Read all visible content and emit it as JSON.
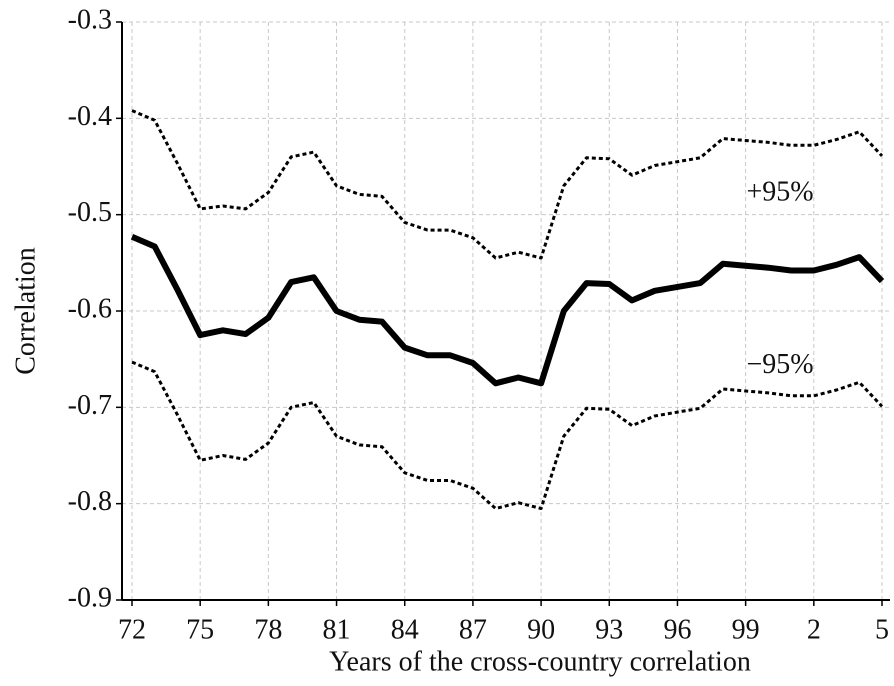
{
  "chart_data": {
    "type": "line",
    "x_label": "Years of the cross-country correlation",
    "y_label": "Correlation",
    "categories": [
      "72",
      null,
      null,
      "75",
      null,
      null,
      "78",
      null,
      null,
      "81",
      null,
      null,
      "84",
      null,
      null,
      "87",
      null,
      null,
      "90",
      null,
      null,
      "93",
      null,
      null,
      "96",
      null,
      null,
      "99",
      null,
      null,
      "2",
      null,
      null,
      "5"
    ],
    "series": [
      {
        "color": "#000000",
        "style": "solid",
        "values": [
          -0.523,
          -0.533,
          -0.578,
          -0.625,
          -0.62,
          -0.624,
          -0.607,
          -0.57,
          -0.565,
          -0.6,
          -0.609,
          -0.611,
          -0.638,
          -0.646,
          -0.646,
          -0.654,
          -0.675,
          -0.669,
          -0.675,
          -0.6,
          -0.571,
          -0.572,
          -0.589,
          -0.579,
          -0.575,
          -0.571,
          -0.551,
          -0.553,
          -0.555,
          -0.558,
          -0.558,
          -0.552,
          -0.544,
          -0.569
        ]
      },
      {
        "name": "+95%",
        "color": "#000000",
        "style": "dotted",
        "values": [
          -0.392,
          -0.402,
          -0.447,
          -0.494,
          -0.491,
          -0.494,
          -0.477,
          -0.44,
          -0.435,
          -0.47,
          -0.479,
          -0.481,
          -0.508,
          -0.516,
          -0.516,
          -0.524,
          -0.545,
          -0.539,
          -0.545,
          -0.47,
          -0.441,
          -0.442,
          -0.459,
          -0.449,
          -0.445,
          -0.441,
          -0.421,
          -0.423,
          -0.425,
          -0.428,
          -0.428,
          -0.422,
          -0.414,
          -0.439
        ]
      },
      {
        "name": "−95%",
        "color": "#000000",
        "style": "dotted",
        "values": [
          -0.653,
          -0.663,
          -0.708,
          -0.755,
          -0.75,
          -0.754,
          -0.737,
          -0.7,
          -0.695,
          -0.73,
          -0.739,
          -0.741,
          -0.768,
          -0.776,
          -0.776,
          -0.784,
          -0.805,
          -0.799,
          -0.805,
          -0.73,
          -0.701,
          -0.702,
          -0.719,
          -0.709,
          -0.705,
          -0.701,
          -0.681,
          -0.683,
          -0.685,
          -0.688,
          -0.688,
          -0.682,
          -0.674,
          -0.699
        ]
      }
    ],
    "ylim": [
      -0.9,
      -0.3
    ],
    "yticks": [
      -0.9,
      -0.8,
      -0.7,
      -0.6,
      -0.5,
      -0.4,
      -0.3
    ],
    "grid": true
  }
}
